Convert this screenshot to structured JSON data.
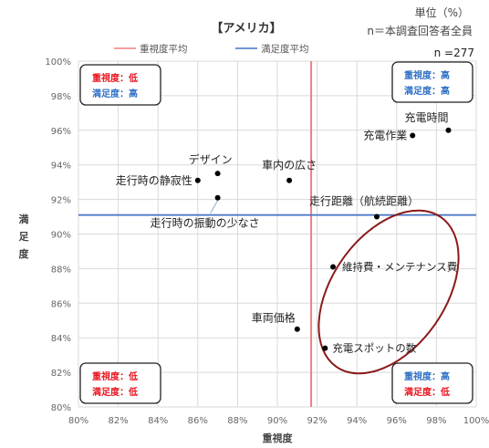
{
  "chart_data": {
    "type": "scatter",
    "title": "【アメリカ】",
    "unit_note": "単位（%）",
    "base_note": "n＝本調査回答者全員",
    "n_label": "n =277",
    "xlabel": "重視度",
    "ylabel": "満足度",
    "xlim": [
      80,
      100
    ],
    "ylim": [
      80,
      100
    ],
    "x_ticks": [
      {
        "value": 80,
        "label": "80%"
      },
      {
        "value": 82,
        "label": "82%"
      },
      {
        "value": 84,
        "label": "84%"
      },
      {
        "value": 86,
        "label": "86%"
      },
      {
        "value": 88,
        "label": "88%"
      },
      {
        "value": 90,
        "label": "90%"
      },
      {
        "value": 92,
        "label": "92%"
      },
      {
        "value": 94,
        "label": "94%"
      },
      {
        "value": 96,
        "label": "96%"
      },
      {
        "value": 98,
        "label": "98%"
      },
      {
        "value": 100,
        "label": "100%"
      }
    ],
    "y_ticks": [
      {
        "value": 80,
        "label": "80%"
      },
      {
        "value": 82,
        "label": "82%"
      },
      {
        "value": 84,
        "label": "84%"
      },
      {
        "value": 86,
        "label": "86%"
      },
      {
        "value": 88,
        "label": "88%"
      },
      {
        "value": 90,
        "label": "90%"
      },
      {
        "value": 92,
        "label": "92%"
      },
      {
        "value": 94,
        "label": "94%"
      },
      {
        "value": 96,
        "label": "96%"
      },
      {
        "value": 98,
        "label": "98%"
      },
      {
        "value": 100,
        "label": "100%"
      }
    ],
    "grid": true,
    "legend": [
      {
        "name": "重視度平均",
        "color": "#f08080"
      },
      {
        "name": "満足度平均",
        "color": "#4472c4"
      }
    ],
    "reference_lines": {
      "importance_avg": 91.7,
      "satisfaction_avg": 91.1
    },
    "points": [
      {
        "label": "充電時間",
        "x": 98.6,
        "y": 96.0
      },
      {
        "label": "充電作業",
        "x": 96.8,
        "y": 95.7
      },
      {
        "label": "デザイン",
        "x": 87.0,
        "y": 93.5
      },
      {
        "label": "走行時の静寂性",
        "x": 86.0,
        "y": 93.1
      },
      {
        "label": "車内の広さ",
        "x": 90.6,
        "y": 93.1
      },
      {
        "label": "走行時の振動の少なさ",
        "x": 87.0,
        "y": 92.1
      },
      {
        "label": "走行距離（航続距離）",
        "x": 95.0,
        "y": 91.0
      },
      {
        "label": "維持費・メンテナンス費",
        "x": 92.8,
        "y": 88.1
      },
      {
        "label": "車両価格",
        "x": 91.0,
        "y": 84.5
      },
      {
        "label": "充電スポットの数",
        "x": 92.4,
        "y": 83.4
      }
    ],
    "quadrant_boxes": [
      {
        "position": "top-left",
        "importance_text": "重視度：低",
        "satisfaction_text": "満足度：高",
        "importance_color": "#e8141e",
        "satisfaction_color": "#2e6fc4"
      },
      {
        "position": "top-right",
        "importance_text": "重視度：高",
        "satisfaction_text": "満足度：高",
        "importance_color": "#2e6fc4",
        "satisfaction_color": "#2e6fc4"
      },
      {
        "position": "bottom-left",
        "importance_text": "重視度：低",
        "satisfaction_text": "満足度：低",
        "importance_color": "#e8141e",
        "satisfaction_color": "#e8141e"
      },
      {
        "position": "bottom-right",
        "importance_text": "重視度：高",
        "satisfaction_text": "満足度：低",
        "importance_color": "#2e6fc4",
        "satisfaction_color": "#e8141e"
      }
    ],
    "highlight_ellipse_color": "#8b1a1a"
  }
}
